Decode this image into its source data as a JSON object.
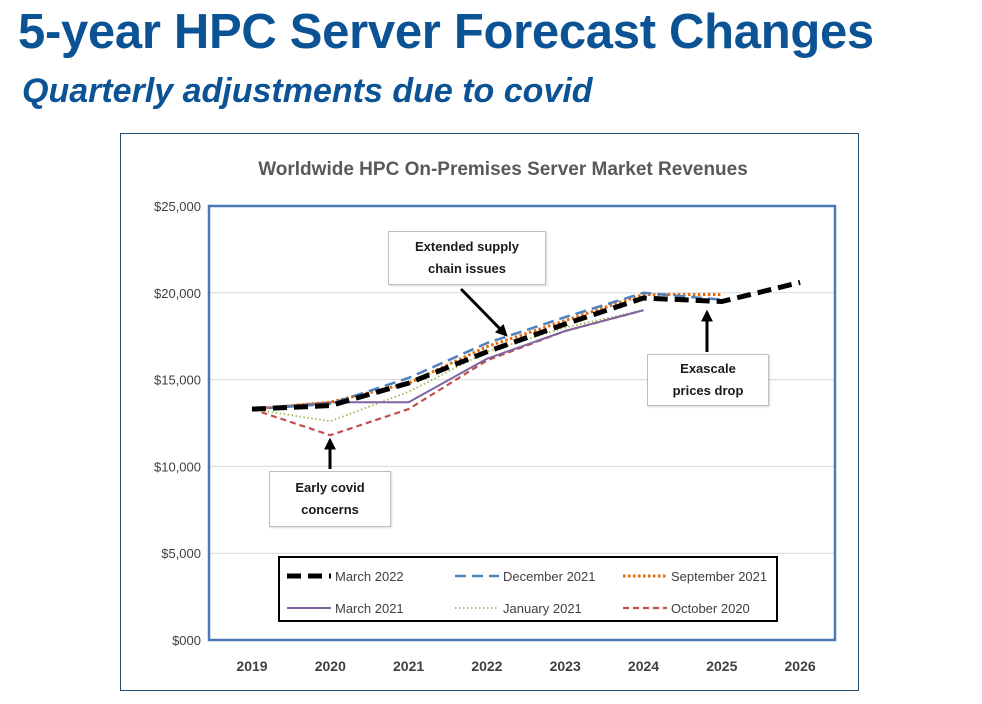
{
  "slide": {
    "title": "5-year HPC Server Forecast Changes",
    "subtitle": "Quarterly adjustments due to covid"
  },
  "callouts": {
    "supply": [
      "Extended supply",
      "chain issues"
    ],
    "exascale": [
      "Exascale",
      "prices drop"
    ],
    "covid": [
      "Early covid",
      "concerns"
    ]
  },
  "colors": {
    "title": "#0b5394",
    "frame": "#1f4e79",
    "plot_border": "#4a7ab5",
    "grid": "#d9d9d9"
  },
  "chart_data": {
    "type": "line",
    "title": "Worldwide HPC On-Premises Server Market Revenues",
    "xlabel": "",
    "ylabel": "",
    "x": [
      2019,
      2020,
      2021,
      2022,
      2023,
      2024,
      2025,
      2026
    ],
    "ylim": [
      0,
      25000
    ],
    "yticks": [
      0,
      5000,
      10000,
      15000,
      20000,
      25000
    ],
    "ytick_labels": [
      "$000",
      "$5,000",
      "$10,000",
      "$15,000",
      "$20,000",
      "$25,000"
    ],
    "grid": true,
    "legend_position": "bottom",
    "series": [
      {
        "name": "March 2022",
        "color": "#000000",
        "style": "thick-dash",
        "values": [
          13300,
          13500,
          14800,
          16600,
          18200,
          19700,
          19500,
          20600
        ]
      },
      {
        "name": "December 2021",
        "color": "#4f81bd",
        "style": "dash",
        "values": [
          13300,
          13600,
          15100,
          17100,
          18600,
          20000,
          19600,
          null
        ]
      },
      {
        "name": "September 2021",
        "color": "#e36c09",
        "style": "dot",
        "values": [
          13300,
          13700,
          14800,
          16900,
          18400,
          19900,
          19900,
          null
        ]
      },
      {
        "name": "March 2021",
        "color": "#8064a2",
        "style": "solid",
        "values": [
          13300,
          13700,
          13700,
          16200,
          17800,
          19000,
          null,
          null
        ]
      },
      {
        "name": "January 2021",
        "color": "#9bbb59",
        "style": "fine-dot",
        "values": [
          13300,
          12600,
          14300,
          16600,
          18000,
          19000,
          null,
          null
        ]
      },
      {
        "name": "October 2020",
        "color": "#c0504d",
        "style": "short-dash",
        "values": [
          13300,
          11800,
          13300,
          16100,
          17800,
          19000,
          null,
          null
        ]
      }
    ]
  }
}
